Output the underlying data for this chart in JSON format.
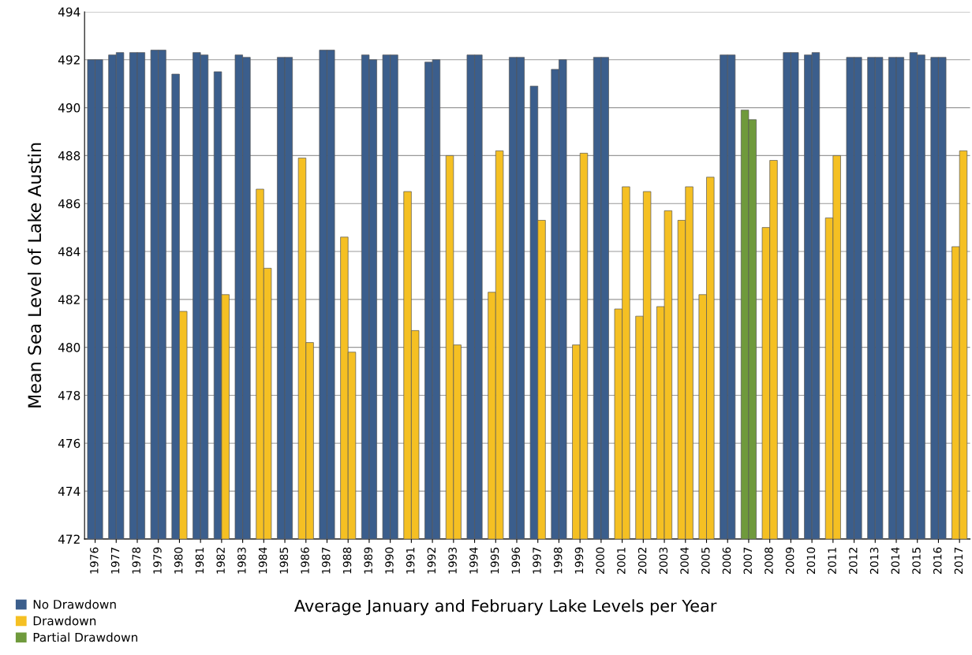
{
  "chart_data": {
    "type": "bar",
    "xlabel": "Average January and February Lake Levels per Year",
    "ylabel": "Mean Sea Level of Lake Austin",
    "categories": [
      "1976",
      "1977",
      "1978",
      "1979",
      "1980",
      "1981",
      "1982",
      "1983",
      "1984",
      "1985",
      "1986",
      "1987",
      "1988",
      "1989",
      "1990",
      "1991",
      "1992",
      "1993",
      "1994",
      "1995",
      "1996",
      "1997",
      "1998",
      "1999",
      "2000",
      "2001",
      "2002",
      "2003",
      "2004",
      "2005",
      "2006",
      "2007",
      "2008",
      "2009",
      "2010",
      "2011",
      "2012",
      "2013",
      "2014",
      "2015",
      "2016",
      "2017"
    ],
    "series": [
      {
        "name": "No Drawdown",
        "color": "#3b5e8c",
        "values": [
          492.0,
          492.2,
          492.3,
          492.4,
          491.4,
          492.3,
          491.5,
          492.2,
          null,
          492.1,
          null,
          492.4,
          null,
          492.2,
          492.2,
          null,
          491.9,
          null,
          492.2,
          null,
          492.1,
          490.9,
          491.6,
          null,
          492.1,
          null,
          null,
          null,
          null,
          null,
          492.2,
          null,
          null,
          492.3,
          492.2,
          null,
          492.1,
          492.1,
          492.1,
          492.3,
          492.1,
          null
        ]
      },
      {
        "color": "#3b5e8c",
        "values": [
          492.0,
          492.3,
          492.3,
          492.4,
          null,
          492.2,
          null,
          492.1,
          null,
          492.1,
          null,
          492.4,
          null,
          492.0,
          492.2,
          null,
          492.0,
          null,
          492.2,
          null,
          492.1,
          null,
          492.0,
          null,
          492.1,
          null,
          null,
          null,
          null,
          null,
          492.2,
          null,
          null,
          492.3,
          492.3,
          null,
          492.1,
          492.1,
          492.1,
          492.2,
          492.1,
          null
        ]
      },
      {
        "name": "Drawdown",
        "color": "#f5c023",
        "values": [
          null,
          null,
          null,
          null,
          null,
          null,
          null,
          null,
          486.6,
          null,
          487.9,
          null,
          484.6,
          null,
          null,
          486.5,
          null,
          488.0,
          null,
          482.3,
          null,
          null,
          null,
          480.1,
          null,
          481.6,
          481.3,
          481.7,
          485.3,
          482.2,
          null,
          null,
          485.0,
          null,
          null,
          485.4,
          null,
          null,
          null,
          null,
          null,
          484.2
        ]
      },
      {
        "color": "#f5c023",
        "values": [
          null,
          null,
          null,
          null,
          481.5,
          null,
          482.2,
          null,
          483.3,
          null,
          480.2,
          null,
          479.8,
          null,
          null,
          480.7,
          null,
          480.1,
          null,
          488.2,
          null,
          485.3,
          null,
          488.1,
          null,
          486.7,
          486.5,
          485.7,
          486.7,
          487.1,
          null,
          null,
          487.8,
          null,
          null,
          488.0,
          null,
          null,
          null,
          null,
          null,
          488.2
        ]
      },
      {
        "name": "Partial Drawdown",
        "color": "#6f9a3c",
        "values": [
          null,
          null,
          null,
          null,
          null,
          null,
          null,
          null,
          null,
          null,
          null,
          null,
          null,
          null,
          null,
          null,
          null,
          null,
          null,
          null,
          null,
          null,
          null,
          null,
          null,
          null,
          null,
          null,
          null,
          null,
          null,
          489.9,
          null,
          null,
          null,
          null,
          null,
          null,
          null,
          null,
          null,
          null
        ]
      },
      {
        "color": "#6f9a3c",
        "values": [
          null,
          null,
          null,
          null,
          null,
          null,
          null,
          null,
          null,
          null,
          null,
          null,
          null,
          null,
          null,
          null,
          null,
          null,
          null,
          null,
          null,
          null,
          null,
          null,
          null,
          null,
          null,
          null,
          null,
          null,
          null,
          489.5,
          null,
          null,
          null,
          null,
          null,
          null,
          null,
          null,
          null,
          null
        ]
      }
    ],
    "ylim": [
      472,
      494
    ],
    "yticks": [
      472,
      474,
      476,
      478,
      480,
      482,
      484,
      486,
      488,
      490,
      492,
      494
    ],
    "grid": "y",
    "legend": "bottom left"
  }
}
